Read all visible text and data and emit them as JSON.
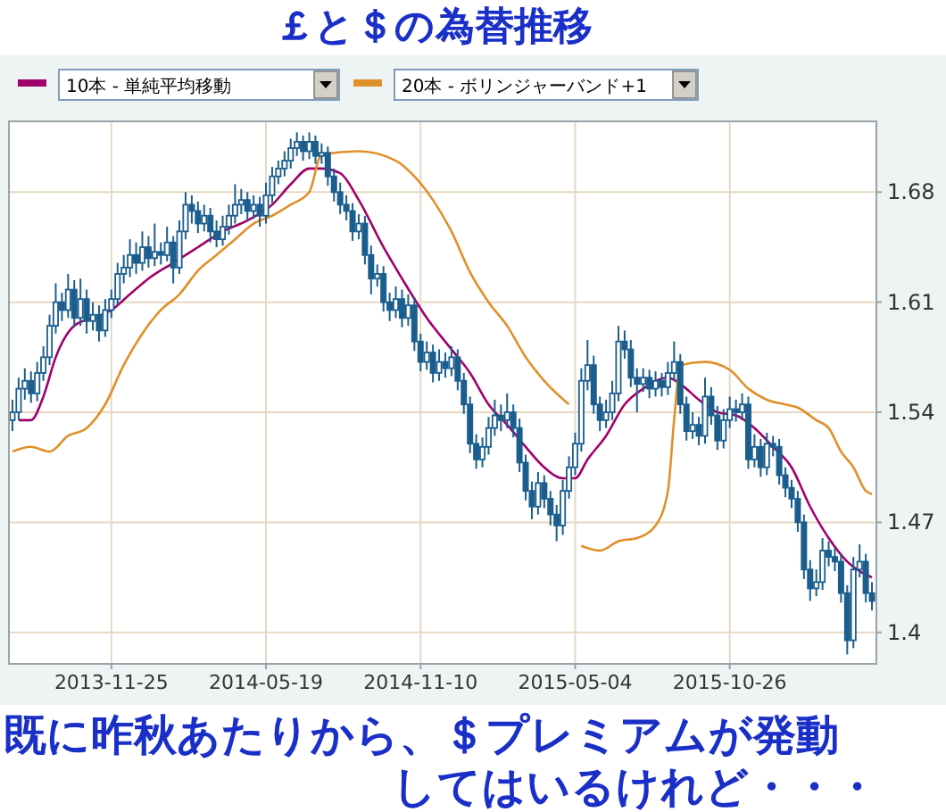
{
  "chart_data": {
    "type": "candlestick",
    "title": "￡と＄の為替推移",
    "annotations": [
      "既に昨秋あたりから、＄プレミアムが発動",
      "してはいるけれど・・・"
    ],
    "legend": "top left",
    "grid": true,
    "xlim": [
      "2013-08-01",
      "2016-04-09"
    ],
    "xticks": [
      "2013-11-25",
      "2014-05-19",
      "2014-11-10",
      "2015-05-04",
      "2015-10-26"
    ],
    "ylim": [
      1.38,
      1.725
    ],
    "yticks": [
      1.4,
      1.47,
      1.54,
      1.61,
      1.68
    ],
    "series": [
      {
        "color": "#1b5e8e",
        "x": [
          "2013-08-05",
          "2013-08-12",
          "2013-08-19",
          "2013-08-26",
          "2013-09-02",
          "2013-09-09",
          "2013-09-16",
          "2013-09-23",
          "2013-09-30",
          "2013-10-07",
          "2013-10-14",
          "2013-10-21",
          "2013-10-28",
          "2013-11-04",
          "2013-11-11",
          "2013-11-18",
          "2013-11-25",
          "2013-12-02",
          "2013-12-09",
          "2013-12-16",
          "2013-12-23",
          "2013-12-30",
          "2014-01-06",
          "2014-01-13",
          "2014-01-20",
          "2014-01-27",
          "2014-02-03",
          "2014-02-10",
          "2014-02-17",
          "2014-02-24",
          "2014-03-03",
          "2014-03-10",
          "2014-03-17",
          "2014-03-24",
          "2014-03-31",
          "2014-04-07",
          "2014-04-14",
          "2014-04-21",
          "2014-04-28",
          "2014-05-05",
          "2014-05-12",
          "2014-05-19",
          "2014-05-26",
          "2014-06-02",
          "2014-06-09",
          "2014-06-16",
          "2014-06-23",
          "2014-06-30",
          "2014-07-07",
          "2014-07-14",
          "2014-07-21",
          "2014-07-28",
          "2014-08-04",
          "2014-08-11",
          "2014-08-18",
          "2014-08-25",
          "2014-09-01",
          "2014-09-08",
          "2014-09-15",
          "2014-09-22",
          "2014-09-29",
          "2014-10-06",
          "2014-10-13",
          "2014-10-20",
          "2014-10-27",
          "2014-11-03",
          "2014-11-10",
          "2014-11-17",
          "2014-11-24",
          "2014-12-01",
          "2014-12-08",
          "2014-12-15",
          "2014-12-22",
          "2014-12-29",
          "2015-01-05",
          "2015-01-12",
          "2015-01-19",
          "2015-01-26",
          "2015-02-02",
          "2015-02-09",
          "2015-02-16",
          "2015-02-23",
          "2015-03-02",
          "2015-03-09",
          "2015-03-16",
          "2015-03-23",
          "2015-03-30",
          "2015-04-06",
          "2015-04-13",
          "2015-04-20",
          "2015-04-27",
          "2015-05-04",
          "2015-05-11",
          "2015-05-18",
          "2015-05-25",
          "2015-06-01",
          "2015-06-08",
          "2015-06-15",
          "2015-06-22",
          "2015-06-29",
          "2015-07-06",
          "2015-07-13",
          "2015-07-20",
          "2015-07-27",
          "2015-08-03",
          "2015-08-10",
          "2015-08-17",
          "2015-08-24",
          "2015-08-31",
          "2015-09-07",
          "2015-09-14",
          "2015-09-21",
          "2015-09-28",
          "2015-10-05",
          "2015-10-12",
          "2015-10-19",
          "2015-10-26",
          "2015-11-02",
          "2015-11-09",
          "2015-11-16",
          "2015-11-23",
          "2015-11-30",
          "2015-12-07",
          "2015-12-14",
          "2015-12-21",
          "2015-12-28",
          "2016-01-04",
          "2016-01-11",
          "2016-01-18",
          "2016-01-25",
          "2016-02-01",
          "2016-02-08",
          "2016-02-15",
          "2016-02-22",
          "2016-02-29",
          "2016-03-07",
          "2016-03-14",
          "2016-03-21",
          "2016-03-28",
          "2016-04-04"
        ],
        "ohlc": [
          [
            1.535,
            1.548,
            1.528,
            1.54
          ],
          [
            1.54,
            1.562,
            1.535,
            1.555
          ],
          [
            1.555,
            1.568,
            1.548,
            1.56
          ],
          [
            1.56,
            1.566,
            1.546,
            1.552
          ],
          [
            1.552,
            1.572,
            1.547,
            1.565
          ],
          [
            1.565,
            1.582,
            1.56,
            1.575
          ],
          [
            1.575,
            1.602,
            1.57,
            1.595
          ],
          [
            1.595,
            1.622,
            1.59,
            1.61
          ],
          [
            1.61,
            1.616,
            1.598,
            1.605
          ],
          [
            1.605,
            1.628,
            1.6,
            1.618
          ],
          [
            1.618,
            1.624,
            1.594,
            1.6
          ],
          [
            1.6,
            1.625,
            1.595,
            1.612
          ],
          [
            1.612,
            1.618,
            1.59,
            1.598
          ],
          [
            1.598,
            1.61,
            1.592,
            1.602
          ],
          [
            1.602,
            1.608,
            1.585,
            1.592
          ],
          [
            1.592,
            1.612,
            1.588,
            1.605
          ],
          [
            1.605,
            1.618,
            1.6,
            1.612
          ],
          [
            1.612,
            1.635,
            1.608,
            1.628
          ],
          [
            1.628,
            1.64,
            1.622,
            1.632
          ],
          [
            1.632,
            1.65,
            1.626,
            1.64
          ],
          [
            1.64,
            1.648,
            1.628,
            1.635
          ],
          [
            1.635,
            1.655,
            1.63,
            1.645
          ],
          [
            1.645,
            1.652,
            1.632,
            1.638
          ],
          [
            1.638,
            1.66,
            1.633,
            1.642
          ],
          [
            1.642,
            1.648,
            1.634,
            1.64
          ],
          [
            1.64,
            1.658,
            1.636,
            1.648
          ],
          [
            1.648,
            1.652,
            1.622,
            1.632
          ],
          [
            1.632,
            1.662,
            1.628,
            1.655
          ],
          [
            1.655,
            1.68,
            1.65,
            1.672
          ],
          [
            1.672,
            1.678,
            1.66,
            1.668
          ],
          [
            1.668,
            1.674,
            1.654,
            1.66
          ],
          [
            1.66,
            1.672,
            1.655,
            1.665
          ],
          [
            1.665,
            1.67,
            1.648,
            1.655
          ],
          [
            1.655,
            1.662,
            1.645,
            1.65
          ],
          [
            1.65,
            1.665,
            1.646,
            1.658
          ],
          [
            1.658,
            1.672,
            1.653,
            1.665
          ],
          [
            1.665,
            1.685,
            1.66,
            1.672
          ],
          [
            1.672,
            1.682,
            1.666,
            1.675
          ],
          [
            1.675,
            1.68,
            1.662,
            1.668
          ],
          [
            1.668,
            1.678,
            1.663,
            1.672
          ],
          [
            1.672,
            1.677,
            1.658,
            1.665
          ],
          [
            1.665,
            1.686,
            1.66,
            1.678
          ],
          [
            1.678,
            1.696,
            1.673,
            1.69
          ],
          [
            1.69,
            1.7,
            1.685,
            1.695
          ],
          [
            1.695,
            1.706,
            1.69,
            1.7
          ],
          [
            1.7,
            1.714,
            1.695,
            1.708
          ],
          [
            1.708,
            1.718,
            1.703,
            1.712
          ],
          [
            1.712,
            1.716,
            1.7,
            1.706
          ],
          [
            1.706,
            1.718,
            1.701,
            1.712
          ],
          [
            1.712,
            1.716,
            1.698,
            1.703
          ],
          [
            1.703,
            1.711,
            1.698,
            1.705
          ],
          [
            1.705,
            1.709,
            1.684,
            1.69
          ],
          [
            1.69,
            1.695,
            1.674,
            1.68
          ],
          [
            1.68,
            1.686,
            1.666,
            1.672
          ],
          [
            1.672,
            1.678,
            1.662,
            1.668
          ],
          [
            1.668,
            1.673,
            1.649,
            1.655
          ],
          [
            1.655,
            1.666,
            1.65,
            1.66
          ],
          [
            1.66,
            1.665,
            1.634,
            1.64
          ],
          [
            1.64,
            1.646,
            1.615,
            1.625
          ],
          [
            1.625,
            1.634,
            1.62,
            1.628
          ],
          [
            1.628,
            1.633,
            1.604,
            1.61
          ],
          [
            1.61,
            1.616,
            1.598,
            1.605
          ],
          [
            1.605,
            1.62,
            1.6,
            1.612
          ],
          [
            1.612,
            1.618,
            1.594,
            1.6
          ],
          [
            1.6,
            1.615,
            1.595,
            1.608
          ],
          [
            1.608,
            1.613,
            1.579,
            1.585
          ],
          [
            1.585,
            1.59,
            1.566,
            1.572
          ],
          [
            1.572,
            1.585,
            1.567,
            1.578
          ],
          [
            1.578,
            1.583,
            1.559,
            1.565
          ],
          [
            1.565,
            1.58,
            1.56,
            1.572
          ],
          [
            1.572,
            1.578,
            1.562,
            1.568
          ],
          [
            1.568,
            1.582,
            1.563,
            1.575
          ],
          [
            1.575,
            1.58,
            1.554,
            1.56
          ],
          [
            1.56,
            1.565,
            1.539,
            1.545
          ],
          [
            1.545,
            1.55,
            1.514,
            1.52
          ],
          [
            1.52,
            1.526,
            1.504,
            1.51
          ],
          [
            1.51,
            1.524,
            1.505,
            1.518
          ],
          [
            1.518,
            1.537,
            1.513,
            1.53
          ],
          [
            1.53,
            1.548,
            1.525,
            1.538
          ],
          [
            1.538,
            1.545,
            1.528,
            1.535
          ],
          [
            1.535,
            1.552,
            1.53,
            1.54
          ],
          [
            1.54,
            1.545,
            1.524,
            1.53
          ],
          [
            1.53,
            1.536,
            1.502,
            1.508
          ],
          [
            1.508,
            1.513,
            1.484,
            1.49
          ],
          [
            1.49,
            1.496,
            1.472,
            1.48
          ],
          [
            1.48,
            1.502,
            1.475,
            1.495
          ],
          [
            1.495,
            1.5,
            1.479,
            1.485
          ],
          [
            1.485,
            1.49,
            1.468,
            1.475
          ],
          [
            1.475,
            1.481,
            1.458,
            1.468
          ],
          [
            1.468,
            1.497,
            1.462,
            1.49
          ],
          [
            1.49,
            1.512,
            1.485,
            1.505
          ],
          [
            1.505,
            1.527,
            1.5,
            1.52
          ],
          [
            1.52,
            1.568,
            1.515,
            1.56
          ],
          [
            1.56,
            1.586,
            1.554,
            1.57
          ],
          [
            1.57,
            1.576,
            1.539,
            1.545
          ],
          [
            1.545,
            1.55,
            1.528,
            1.535
          ],
          [
            1.535,
            1.548,
            1.53,
            1.54
          ],
          [
            1.54,
            1.56,
            1.535,
            1.552
          ],
          [
            1.552,
            1.595,
            1.547,
            1.585
          ],
          [
            1.585,
            1.592,
            1.574,
            1.58
          ],
          [
            1.58,
            1.586,
            1.556,
            1.562
          ],
          [
            1.562,
            1.568,
            1.54,
            1.558
          ],
          [
            1.558,
            1.568,
            1.553,
            1.562
          ],
          [
            1.562,
            1.567,
            1.549,
            1.555
          ],
          [
            1.555,
            1.566,
            1.55,
            1.56
          ],
          [
            1.56,
            1.565,
            1.55,
            1.556
          ],
          [
            1.556,
            1.572,
            1.551,
            1.565
          ],
          [
            1.565,
            1.585,
            1.56,
            1.572
          ],
          [
            1.572,
            1.577,
            1.539,
            1.545
          ],
          [
            1.545,
            1.55,
            1.522,
            1.528
          ],
          [
            1.528,
            1.54,
            1.523,
            1.532
          ],
          [
            1.532,
            1.537,
            1.519,
            1.525
          ],
          [
            1.525,
            1.562,
            1.52,
            1.55
          ],
          [
            1.55,
            1.556,
            1.532,
            1.538
          ],
          [
            1.538,
            1.544,
            1.516,
            1.522
          ],
          [
            1.522,
            1.542,
            1.517,
            1.535
          ],
          [
            1.535,
            1.55,
            1.53,
            1.542
          ],
          [
            1.542,
            1.548,
            1.534,
            1.54
          ],
          [
            1.54,
            1.552,
            1.535,
            1.545
          ],
          [
            1.545,
            1.55,
            1.504,
            1.51
          ],
          [
            1.51,
            1.526,
            1.505,
            1.518
          ],
          [
            1.518,
            1.523,
            1.499,
            1.505
          ],
          [
            1.505,
            1.527,
            1.5,
            1.52
          ],
          [
            1.52,
            1.525,
            1.512,
            1.518
          ],
          [
            1.518,
            1.523,
            1.494,
            1.5
          ],
          [
            1.5,
            1.505,
            1.486,
            1.492
          ],
          [
            1.492,
            1.497,
            1.479,
            1.485
          ],
          [
            1.485,
            1.49,
            1.464,
            1.47
          ],
          [
            1.47,
            1.475,
            1.434,
            1.44
          ],
          [
            1.44,
            1.446,
            1.42,
            1.428
          ],
          [
            1.428,
            1.44,
            1.423,
            1.432
          ],
          [
            1.432,
            1.46,
            1.427,
            1.452
          ],
          [
            1.452,
            1.458,
            1.442,
            1.448
          ],
          [
            1.448,
            1.454,
            1.439,
            1.445
          ],
          [
            1.445,
            1.45,
            1.419,
            1.425
          ],
          [
            1.425,
            1.43,
            1.386,
            1.395
          ],
          [
            1.395,
            1.448,
            1.39,
            1.44
          ],
          [
            1.44,
            1.456,
            1.435,
            1.445
          ],
          [
            1.445,
            1.45,
            1.419,
            1.425
          ],
          [
            1.425,
            1.432,
            1.414,
            1.42
          ]
        ]
      },
      {
        "type": "line",
        "name": "10本 - 単純平均移動",
        "color": "#a0006a",
        "x": [
          "2013-08-12",
          "2013-08-26",
          "2013-09-09",
          "2013-09-23",
          "2013-10-14",
          "2013-11-04",
          "2013-11-25",
          "2013-12-16",
          "2014-01-06",
          "2014-02-03",
          "2014-03-03",
          "2014-03-31",
          "2014-04-28",
          "2014-05-26",
          "2014-06-16",
          "2014-07-07",
          "2014-07-21",
          "2014-08-11",
          "2014-09-01",
          "2014-09-29",
          "2014-10-20",
          "2014-11-17",
          "2014-12-15",
          "2015-01-05",
          "2015-01-26",
          "2015-02-16",
          "2015-03-09",
          "2015-03-30",
          "2015-04-20",
          "2015-05-04",
          "2015-05-18",
          "2015-06-08",
          "2015-06-29",
          "2015-07-20",
          "2015-08-17",
          "2015-08-31",
          "2015-09-21",
          "2015-10-12",
          "2015-11-02",
          "2015-11-23",
          "2015-12-14",
          "2016-01-04",
          "2016-01-25",
          "2016-02-15",
          "2016-03-07",
          "2016-04-04"
        ],
        "values": [
          1.535,
          1.535,
          1.55,
          1.575,
          1.595,
          1.6,
          1.605,
          1.615,
          1.625,
          1.635,
          1.645,
          1.655,
          1.662,
          1.672,
          1.685,
          1.695,
          1.695,
          1.692,
          1.675,
          1.645,
          1.625,
          1.6,
          1.58,
          1.565,
          1.545,
          1.532,
          1.518,
          1.505,
          1.498,
          1.498,
          1.51,
          1.525,
          1.545,
          1.555,
          1.562,
          1.558,
          1.548,
          1.54,
          1.538,
          1.53,
          1.518,
          1.505,
          1.48,
          1.46,
          1.445,
          1.435
        ]
      },
      {
        "type": "line",
        "name": "20本 - ボリンジャーバンド+1",
        "color": "#e0902a",
        "x": [
          "2013-08-05",
          "2013-08-26",
          "2013-09-16",
          "2013-10-07",
          "2013-10-28",
          "2013-11-18",
          "2013-12-09",
          "2013-12-30",
          "2014-01-20",
          "2014-02-10",
          "2014-03-03",
          "2014-03-24",
          "2014-04-14",
          "2014-05-05",
          "2014-05-26",
          "2014-06-16",
          "2014-07-07",
          "2014-07-21",
          "2014-09-01",
          "2014-10-13",
          "2014-11-03",
          "2014-11-24",
          "2014-12-15",
          "2015-01-05",
          "2015-01-26",
          "2015-02-16",
          "2015-03-09",
          "2015-03-30",
          "2015-04-27",
          "2015-05-04",
          "2015-05-11",
          "2015-06-01",
          "2015-06-22",
          "2015-07-13",
          "2015-08-03",
          "2015-08-17",
          "2015-08-24",
          "2015-08-31",
          "2015-09-28",
          "2015-10-26",
          "2015-11-16",
          "2015-12-07",
          "2015-12-28",
          "2016-01-11",
          "2016-02-01",
          "2016-02-15",
          "2016-02-29",
          "2016-03-14",
          "2016-03-28",
          "2016-04-04"
        ],
        "values": [
          1.515,
          1.518,
          1.515,
          1.525,
          1.53,
          1.545,
          1.57,
          1.59,
          1.605,
          1.615,
          1.63,
          1.64,
          1.65,
          1.66,
          1.665,
          1.672,
          1.68,
          1.704,
          1.706,
          1.7,
          1.69,
          1.675,
          1.655,
          1.629,
          1.61,
          1.595,
          1.575,
          1.56,
          1.545,
          null,
          1.455,
          1.452,
          1.458,
          1.46,
          1.468,
          1.49,
          1.535,
          1.57,
          1.572,
          1.567,
          1.555,
          1.548,
          1.545,
          1.543,
          1.535,
          1.53,
          1.515,
          1.505,
          1.49,
          1.488
        ]
      }
    ]
  }
}
